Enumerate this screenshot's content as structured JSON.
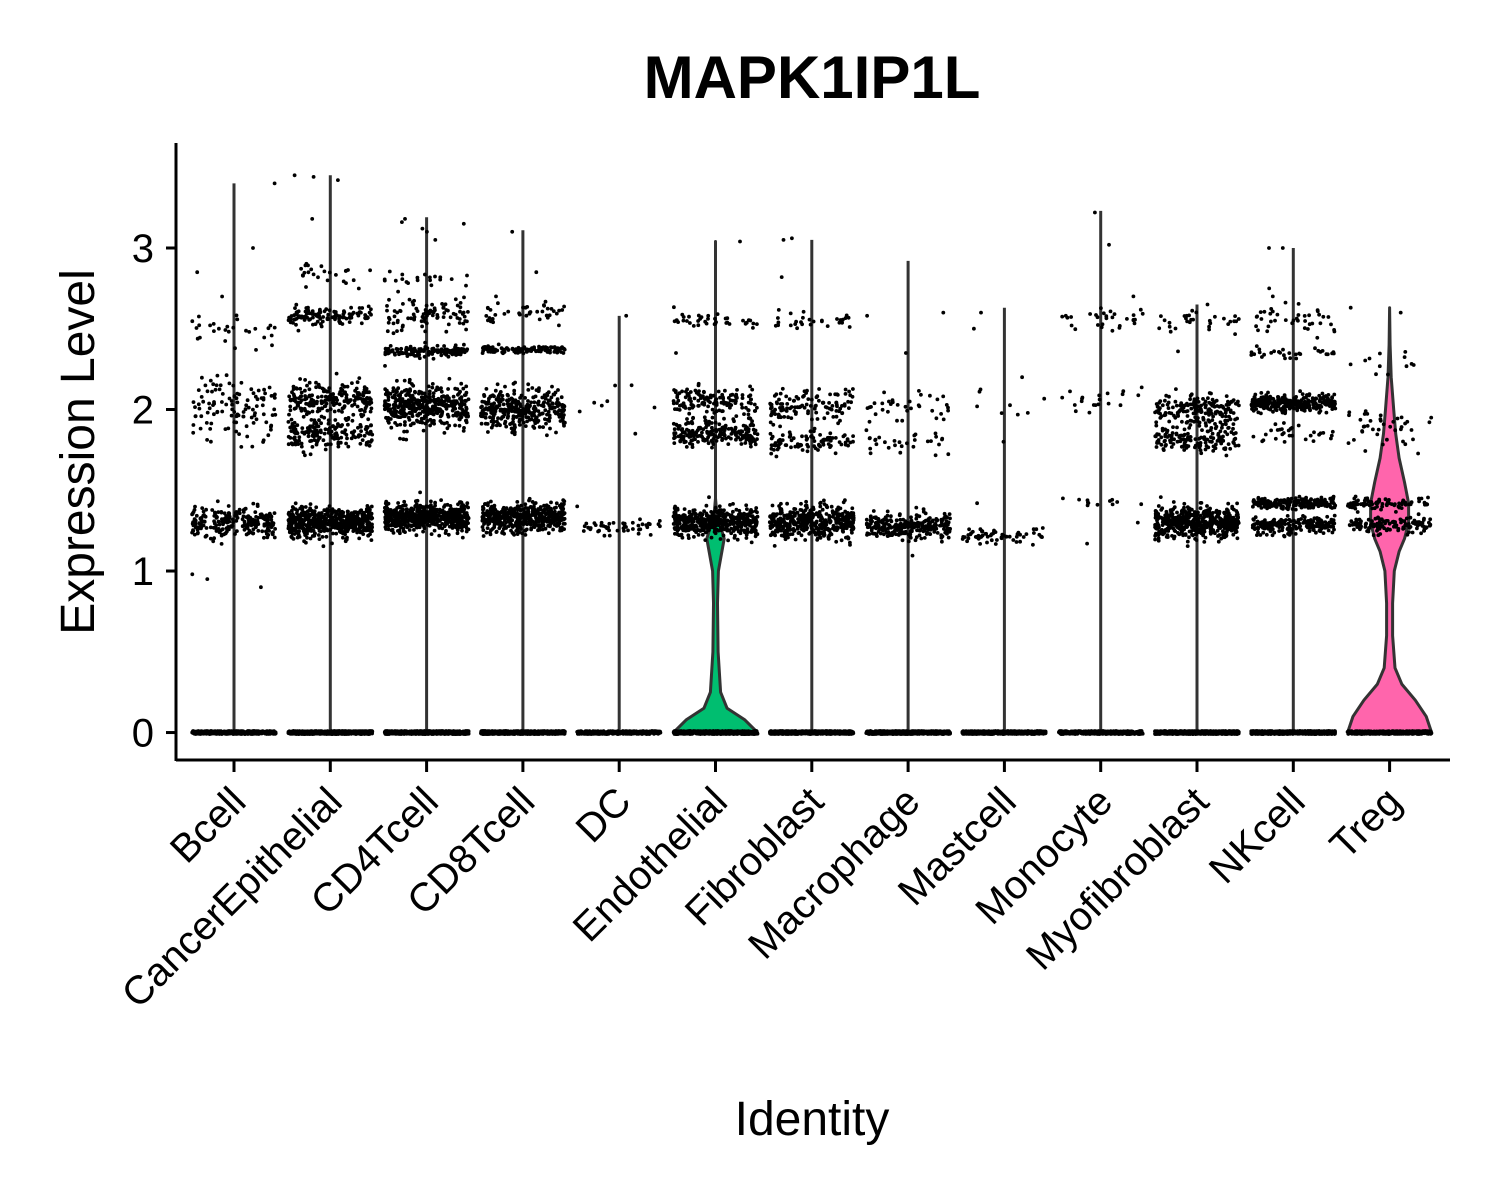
{
  "chart_data": {
    "type": "violin",
    "title": "MAPK1IP1L",
    "xlabel": "Identity",
    "ylabel": "Expression Level",
    "ylim": [
      -0.17,
      3.65
    ],
    "yticks": [
      0,
      1,
      2,
      3
    ],
    "categories": [
      "Bcell",
      "CancerEpithelial",
      "CD4Tcell",
      "CD8Tcell",
      "DC",
      "Endothelial",
      "Fibroblast",
      "Macrophage",
      "Mastcell",
      "Monocyte",
      "Myofibroblast",
      "NKcell",
      "Treg"
    ],
    "violin_fill": [
      "#F8766D",
      "#E18A00",
      "#BE9C00",
      "#8CAB00",
      "#24B700",
      "#00BE70",
      "#00C1AB",
      "#00BBDA",
      "#00ACFC",
      "#8B93FF",
      "#D575FE",
      "#F962DD",
      "#FF65AC"
    ],
    "violin_max": [
      3.4,
      3.45,
      3.19,
      3.11,
      2.58,
      3.04,
      3.05,
      2.92,
      2.63,
      3.23,
      2.65,
      3.0,
      2.63
    ],
    "points_color": "#000000",
    "point_bands": [
      {
        "n0": 520,
        "bands": [
          [
            1.3,
            0.08,
            230
          ],
          [
            2.02,
            0.18,
            110
          ],
          [
            2.5,
            0.13,
            30
          ]
        ],
        "out": [
          0.9,
          0.95,
          0.98,
          2.85,
          3.0,
          3.4
        ]
      },
      {
        "n0": 700,
        "bands": [
          [
            1.3,
            0.08,
            560
          ],
          [
            1.85,
            0.1,
            170
          ],
          [
            2.05,
            0.1,
            210
          ],
          [
            2.58,
            0.05,
            120
          ],
          [
            2.85,
            0.07,
            25
          ]
        ],
        "out": [
          3.18,
          3.42,
          3.45,
          3.44
        ]
      },
      {
        "n0": 700,
        "bands": [
          [
            1.33,
            0.08,
            560
          ],
          [
            2.02,
            0.12,
            420
          ],
          [
            2.36,
            0.03,
            140
          ],
          [
            2.58,
            0.12,
            90
          ],
          [
            2.8,
            0.05,
            20
          ]
        ],
        "out": [
          3.05,
          3.1,
          3.15,
          3.18,
          3.16,
          3.12
        ]
      },
      {
        "n0": 700,
        "bands": [
          [
            1.33,
            0.08,
            500
          ],
          [
            2.0,
            0.12,
            330
          ],
          [
            2.37,
            0.02,
            110
          ],
          [
            2.6,
            0.08,
            40
          ]
        ],
        "out": [
          2.7,
          2.85,
          3.1
        ]
      },
      {
        "n0": 300,
        "bands": [
          [
            1.27,
            0.05,
            45
          ],
          [
            2.05,
            0.12,
            6
          ]
        ],
        "out": [
          2.58,
          2.15,
          1.85,
          1.4
        ]
      },
      {
        "n0": 700,
        "bands": [
          [
            1.3,
            0.08,
            460
          ],
          [
            1.85,
            0.08,
            200
          ],
          [
            2.05,
            0.08,
            140
          ],
          [
            2.55,
            0.04,
            40
          ]
        ],
        "out": [
          2.35,
          3.04
        ]
      },
      {
        "n0": 700,
        "bands": [
          [
            1.3,
            0.09,
            430
          ],
          [
            1.8,
            0.06,
            90
          ],
          [
            2.02,
            0.1,
            120
          ],
          [
            2.55,
            0.05,
            30
          ]
        ],
        "out": [
          2.82,
          3.05,
          3.06
        ]
      },
      {
        "n0": 600,
        "bands": [
          [
            1.28,
            0.07,
            260
          ],
          [
            1.8,
            0.07,
            30
          ],
          [
            2.02,
            0.08,
            35
          ]
        ],
        "out": [
          2.35,
          2.6,
          2.58
        ]
      },
      {
        "n0": 500,
        "bands": [
          [
            1.22,
            0.04,
            60
          ],
          [
            2.05,
            0.1,
            8
          ]
        ],
        "out": [
          2.5,
          2.6,
          2.2,
          1.8,
          1.42
        ]
      },
      {
        "n0": 500,
        "bands": [
          [
            2.05,
            0.06,
            20
          ],
          [
            2.57,
            0.05,
            30
          ],
          [
            1.42,
            0.03,
            12
          ]
        ],
        "out": [
          1.3,
          1.17,
          2.7,
          3.02,
          3.22
        ]
      },
      {
        "n0": 700,
        "bands": [
          [
            1.3,
            0.09,
            520
          ],
          [
            1.82,
            0.07,
            150
          ],
          [
            2.0,
            0.08,
            170
          ],
          [
            2.55,
            0.06,
            30
          ]
        ],
        "out": [
          2.36,
          2.65
        ]
      },
      {
        "n0": 700,
        "bands": [
          [
            1.28,
            0.05,
            200
          ],
          [
            1.42,
            0.03,
            200
          ],
          [
            2.04,
            0.05,
            300
          ],
          [
            1.85,
            0.05,
            30
          ],
          [
            2.35,
            0.04,
            30
          ],
          [
            2.55,
            0.08,
            40
          ]
        ],
        "out": [
          2.7,
          2.75,
          3.0,
          3.0
        ]
      },
      {
        "n0": 400,
        "bands": [
          [
            1.28,
            0.05,
            120
          ],
          [
            1.42,
            0.03,
            80
          ],
          [
            1.9,
            0.12,
            40
          ],
          [
            2.3,
            0.08,
            12
          ]
        ],
        "out": [
          2.63,
          2.6
        ]
      }
    ],
    "violin_shapes": {
      "Endothelial": [
        [
          0,
          0.29
        ],
        [
          0.08,
          0.2
        ],
        [
          0.15,
          0.08
        ],
        [
          0.25,
          0.035
        ],
        [
          0.5,
          0.018
        ],
        [
          0.8,
          0.014
        ],
        [
          1.0,
          0.02
        ],
        [
          1.1,
          0.04
        ],
        [
          1.2,
          0.06
        ],
        [
          1.26,
          0.04
        ],
        [
          1.35,
          0.01
        ],
        [
          1.45,
          0.0
        ]
      ],
      "Treg": [
        [
          0,
          0.31
        ],
        [
          0.1,
          0.27
        ],
        [
          0.2,
          0.19
        ],
        [
          0.3,
          0.09
        ],
        [
          0.4,
          0.04
        ],
        [
          0.6,
          0.022
        ],
        [
          0.8,
          0.022
        ],
        [
          1.0,
          0.035
        ],
        [
          1.12,
          0.07
        ],
        [
          1.2,
          0.11
        ],
        [
          1.3,
          0.14
        ],
        [
          1.42,
          0.14
        ],
        [
          1.55,
          0.11
        ],
        [
          1.7,
          0.07
        ],
        [
          1.85,
          0.045
        ],
        [
          2.0,
          0.03
        ],
        [
          2.2,
          0.012
        ],
        [
          2.4,
          0.004
        ],
        [
          2.63,
          0.0
        ]
      ]
    }
  }
}
